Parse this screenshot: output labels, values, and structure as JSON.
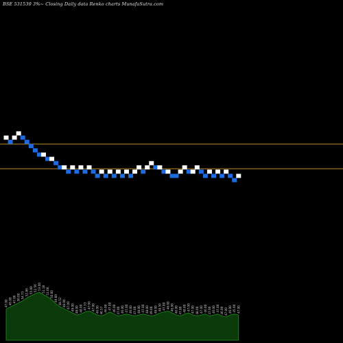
{
  "page": {
    "title": "BSE 531539 3%~  Closing Daily data  Renko  charts MunafaSutra.com"
  },
  "colors": {
    "background": "#000000",
    "up_brick": "#ffffff",
    "down_brick": "#1e6be0",
    "support_line": "#c08a2a",
    "volume_fill": "#0a3a0a",
    "volume_stroke": "#1f8f1f",
    "volume_label": "#d0d0d0"
  },
  "chart_data": [
    {
      "type": "renko",
      "title": "BSE 531539 3%~  Closing Daily data  Renko  charts MunafaSutra.com",
      "box_size_percent": 3,
      "reference_lines": [
        "upper",
        "lower"
      ],
      "bricks": [
        {
          "dir": "up",
          "level": 7
        },
        {
          "dir": "down",
          "level": 6
        },
        {
          "dir": "up",
          "level": 7
        },
        {
          "dir": "up",
          "level": 8
        },
        {
          "dir": "down",
          "level": 7
        },
        {
          "dir": "down",
          "level": 6
        },
        {
          "dir": "down",
          "level": 5
        },
        {
          "dir": "down",
          "level": 4
        },
        {
          "dir": "down",
          "level": 3
        },
        {
          "dir": "up",
          "level": 3
        },
        {
          "dir": "down",
          "level": 2
        },
        {
          "dir": "up",
          "level": 2
        },
        {
          "dir": "down",
          "level": 1
        },
        {
          "dir": "down",
          "level": 0
        },
        {
          "dir": "up",
          "level": 0
        },
        {
          "dir": "down",
          "level": -1
        },
        {
          "dir": "up",
          "level": 0
        },
        {
          "dir": "down",
          "level": -1
        },
        {
          "dir": "up",
          "level": 0
        },
        {
          "dir": "down",
          "level": -1
        },
        {
          "dir": "up",
          "level": 0
        },
        {
          "dir": "down",
          "level": -1
        },
        {
          "dir": "down",
          "level": -2
        },
        {
          "dir": "up",
          "level": -1
        },
        {
          "dir": "down",
          "level": -2
        },
        {
          "dir": "up",
          "level": -1
        },
        {
          "dir": "down",
          "level": -2
        },
        {
          "dir": "up",
          "level": -1
        },
        {
          "dir": "down",
          "level": -2
        },
        {
          "dir": "up",
          "level": -1
        },
        {
          "dir": "down",
          "level": -2
        },
        {
          "dir": "up",
          "level": -1
        },
        {
          "dir": "up",
          "level": 0
        },
        {
          "dir": "down",
          "level": -1
        },
        {
          "dir": "up",
          "level": 0
        },
        {
          "dir": "up",
          "level": 1
        },
        {
          "dir": "down",
          "level": 0
        },
        {
          "dir": "up",
          "level": 0
        },
        {
          "dir": "down",
          "level": -1
        },
        {
          "dir": "up",
          "level": -1
        },
        {
          "dir": "down",
          "level": -2
        },
        {
          "dir": "down",
          "level": -2
        },
        {
          "dir": "up",
          "level": -1
        },
        {
          "dir": "up",
          "level": 0
        },
        {
          "dir": "down",
          "level": -1
        },
        {
          "dir": "up",
          "level": -1
        },
        {
          "dir": "up",
          "level": 0
        },
        {
          "dir": "down",
          "level": -1
        },
        {
          "dir": "down",
          "level": -2
        },
        {
          "dir": "up",
          "level": -1
        },
        {
          "dir": "down",
          "level": -2
        },
        {
          "dir": "up",
          "level": -1
        },
        {
          "dir": "down",
          "level": -2
        },
        {
          "dir": "up",
          "level": -1
        },
        {
          "dir": "down",
          "level": -2
        },
        {
          "dir": "down",
          "level": -3
        },
        {
          "dir": "up",
          "level": -2
        }
      ],
      "volume_values": [
        62,
        66,
        70,
        74,
        78,
        84,
        88,
        92,
        95,
        90,
        86,
        80,
        72,
        66,
        62,
        58,
        54,
        50,
        52,
        56,
        58,
        54,
        50,
        48,
        52,
        56,
        52,
        48,
        50,
        52,
        50,
        48,
        50,
        52,
        50,
        48,
        50,
        54,
        56,
        58,
        54,
        50,
        48,
        52,
        54,
        50,
        48,
        50,
        52,
        48,
        50,
        52,
        48,
        46,
        50,
        52,
        50
      ],
      "volume_labels": [
        "47.00",
        "46.00",
        "47.00",
        "50.00",
        "54.73",
        "52.86",
        "55.00",
        "52.56",
        "53.00",
        "51.18",
        "51.00",
        "50.00",
        "49.00",
        "48.52",
        "48.00",
        "47.00",
        "49.00",
        "48.00",
        "48.00",
        "47.33",
        "47.00",
        "47.00",
        "46.00",
        "46.57",
        "46.00",
        "47.00",
        "46.00",
        "47.00",
        "46.00",
        "47.00",
        "46.00",
        "47.00",
        "48.00",
        "47.00",
        "48.00",
        "49.00",
        "48.00",
        "48.50",
        "47.00",
        "48.00",
        "46.00",
        "46.00",
        "47.00",
        "48.00",
        "47.00",
        "47.00",
        "48.00",
        "47.00",
        "46.00",
        "47.00",
        "46.00",
        "47.00",
        "46.00",
        "47.00",
        "46.00",
        "45.00",
        "47.00"
      ]
    }
  ]
}
